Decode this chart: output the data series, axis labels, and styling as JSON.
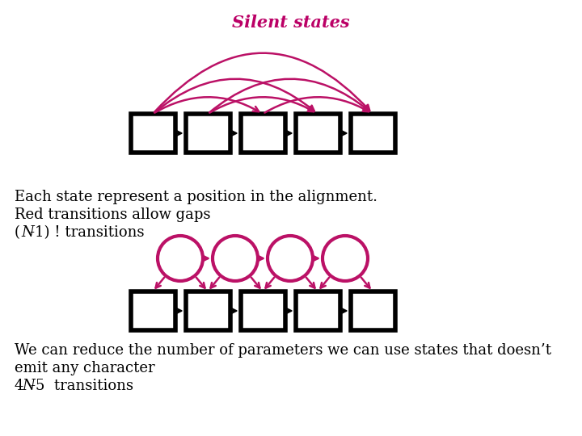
{
  "title": "Silent states",
  "title_color": "#bb0066",
  "title_fontsize": 15,
  "bg_color": "#ffffff",
  "magenta": "#bb1166",
  "black": "#000000",
  "text1_line1": "Each state represent a position in the alignment.",
  "text1_line2": "Red transitions allow gaps",
  "text1_line3": "(N-1) ! transitions",
  "text2_line1": "We can reduce the number of parameters we can use states that doesn’t",
  "text2_line2": "emit any character",
  "text2_line3": "4N-5  transitions"
}
